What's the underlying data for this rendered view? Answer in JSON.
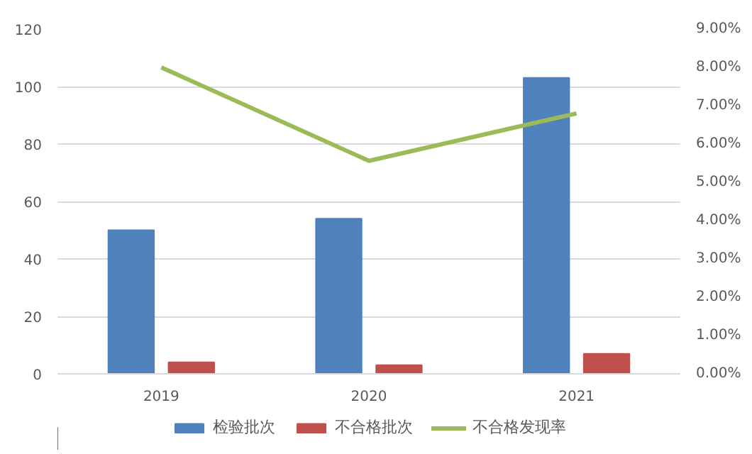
{
  "chart_data": {
    "type": "bar",
    "categories": [
      "2019",
      "2020",
      "2021"
    ],
    "series": [
      {
        "name": "检验批次",
        "color": "#4f81bd",
        "values": [
          50,
          54,
          103
        ]
      },
      {
        "name": "不合格批次",
        "color": "#c0504d",
        "values": [
          4,
          3,
          7
        ]
      },
      {
        "name": "不合格发现率",
        "color": "#9bbb59",
        "type": "line",
        "axis": "y2",
        "values": [
          8.0,
          5.56,
          6.8
        ]
      }
    ],
    "ylim": [
      0,
      120
    ],
    "yticks": [
      0,
      20,
      40,
      60,
      80,
      100,
      120
    ],
    "y2lim": [
      0,
      9
    ],
    "y2ticks": [
      {
        "value": 0,
        "label": "0.00%"
      },
      {
        "value": 1,
        "label": "1.00%"
      },
      {
        "value": 2,
        "label": "2.00%"
      },
      {
        "value": 3,
        "label": "3.00%"
      },
      {
        "value": 4,
        "label": "4.00%"
      },
      {
        "value": 5,
        "label": "5.00%"
      },
      {
        "value": 6,
        "label": "6.00%"
      },
      {
        "value": 7,
        "label": "7.00%"
      },
      {
        "value": 8,
        "label": "8.00%"
      },
      {
        "value": 9,
        "label": "9.00%"
      }
    ],
    "grid": "y",
    "legend": "bottom"
  }
}
